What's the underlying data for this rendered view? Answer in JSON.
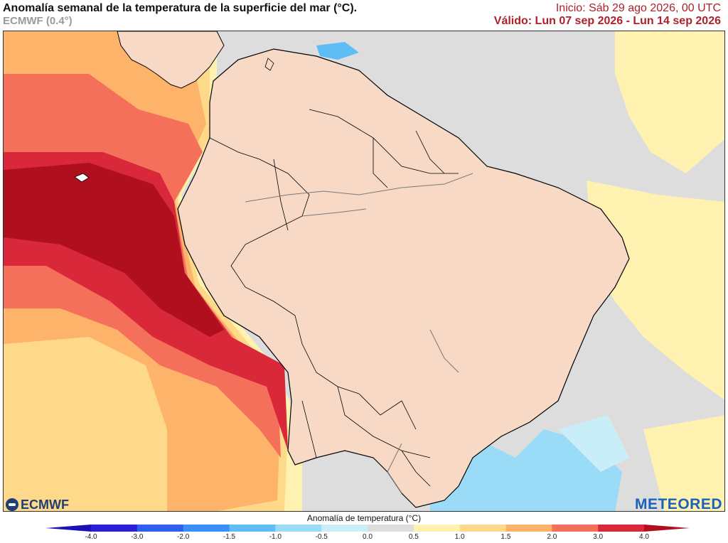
{
  "header": {
    "title": "Anomalía semanal de la temperatura de la superficie del mar (°C).",
    "model": "ECMWF (0.4°)",
    "init": "Inicio: Sáb 29 ago 2026, 00 UTC",
    "valid": "Válido: Lun 07 sep 2026 - Lun 14 sep 2026"
  },
  "legend": {
    "title": "Anomalía de temperatura (°C)",
    "ticks": [
      "-4.0",
      "-3.0",
      "-2.0",
      "-1.5",
      "-1.0",
      "-0.5",
      "0.0",
      "0.5",
      "1.0",
      "1.5",
      "2.0",
      "3.0",
      "4.0"
    ],
    "colors": [
      "#2a1fd6",
      "#2f5ff0",
      "#3a8ef5",
      "#5fbdf5",
      "#9adcf7",
      "#c9eef7",
      "#dddddd",
      "#fff2b0",
      "#ffd98a",
      "#fdb36a",
      "#f5705a",
      "#d8283a"
    ],
    "low_color": "#1a11b5",
    "high_color": "#b0101e"
  },
  "logos": {
    "left": "ECMWF",
    "right": "METEORED"
  },
  "map": {
    "land_color": "#f7d9c6",
    "ocean_base_color": "#dddddd",
    "border_color": "#000000",
    "river_color": "#7a7a7a"
  }
}
